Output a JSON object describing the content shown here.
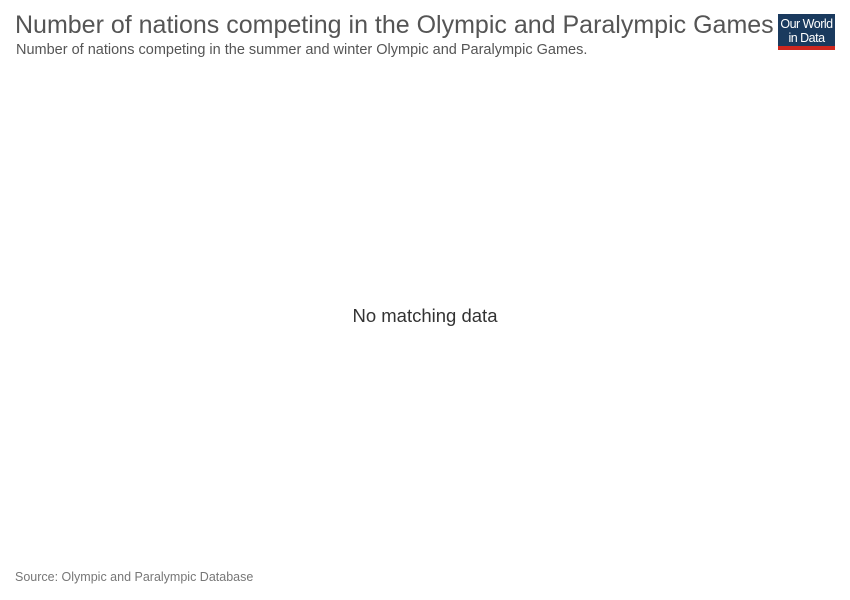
{
  "header": {
    "title": "Number of nations competing in the Olympic and Paralympic Games",
    "subtitle": "Number of nations competing in the summer and winter Olympic and Paralympic Games."
  },
  "logo": {
    "line1": "Our World",
    "line2": "in Data",
    "colors": {
      "background": "#1a3a5e",
      "underline": "#ce261e"
    }
  },
  "chart_data": {
    "type": "line",
    "title": "Number of nations competing in the Olympic and Paralympic Games",
    "subtitle": "Number of nations competing in the summer and winter Olympic and Paralympic Games.",
    "series": [],
    "empty_message": "No matching data"
  },
  "footer": {
    "source": "Source: Olympic and Paralympic Database"
  }
}
